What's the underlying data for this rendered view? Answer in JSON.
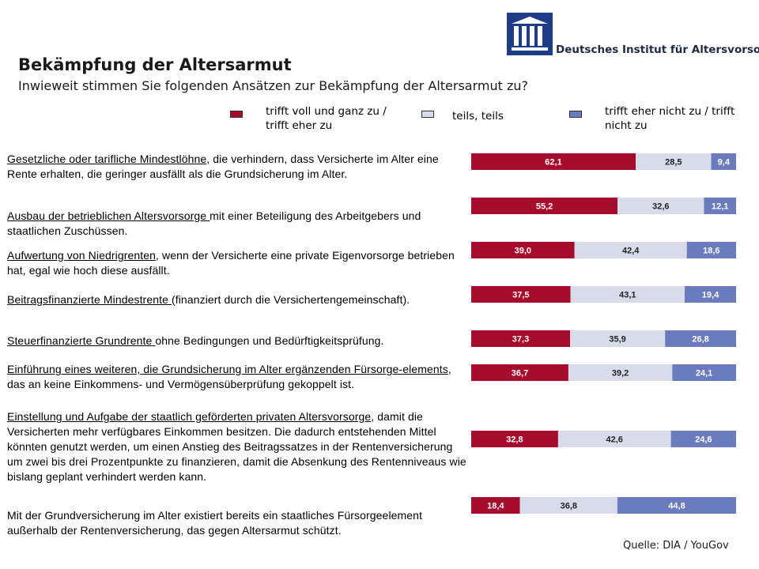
{
  "logo": {
    "name": "Deutsches Institut für Altersvorsorge"
  },
  "title": "Bekämpfung der Altersarmut",
  "subtitle": "Inwieweit stimmen Sie folgenden Ansätzen zur Bekämpfung der Altersarmut zu?",
  "legend": {
    "agree_line1": "trifft voll und ganz zu /",
    "agree_line2": "trifft eher zu",
    "neutral": "teils, teils",
    "disagree_line1": "trifft eher nicht zu / trifft",
    "disagree_line2": "nicht zu"
  },
  "questions": [
    {
      "underlined": "Gesetzliche oder tarifliche Mindestlöhne",
      "rest": ", die verhindern, dass Versicherte im Alter eine Rente erhalten, die geringer ausfällt als die Grundsicherung im Alter."
    },
    {
      "underlined": "Ausbau der betrieblichen Altersvorsorge ",
      "rest": "mit einer Beteiligung des Arbeitgebers und staatlichen Zuschüssen."
    },
    {
      "underlined": "Aufwertung von Niedrigrenten",
      "rest": ", wenn der Versicherte eine private Eigenvorsorge betrieben hat, egal wie hoch diese ausfällt."
    },
    {
      "underlined": "Beitragsfinanzierte Mindestrente ",
      "rest": "(finanziert durch die Versichertengemeinschaft)."
    },
    {
      "underlined": "Steuerfinanzierte Grundrente ",
      "rest": "ohne Bedingungen und Bedürftigkeitsprüfung."
    },
    {
      "underlined": "Einführung eines weiteren, die Grundsicherung im Alter ergänzenden Fürsorge-elements",
      "rest": ", das an keine Einkommens- und Vermögensüberprüfung gekoppelt ist."
    },
    {
      "underlined": "Einstellung und Aufgabe der staatlich geförderten privaten Altersvorsorge",
      "rest": ", damit die Versicherten mehr verfügbares Einkommen besitzen. Die dadurch entstehenden Mittel könnten genutzt werden, um einen Anstieg des Beitragssatzes in der Rentenversicherung um zwei bis drei Prozentpunkte zu finanzieren, damit die Absenkung des Rentenniveaus wie bislang geplant verhindert werden kann."
    },
    {
      "underlined": "",
      "rest": "Mit der Grundversicherung im Alter existiert bereits ein staatliches Fürsorgeelement außerhalb der Rentenversicherung, das gegen Altersarmut schützt."
    }
  ],
  "source": "Quelle: DIA / YouGov",
  "colors": {
    "agree": "#a50b2c",
    "neutral": "#d8dcea",
    "disagree": "#6b7cbe",
    "logo": "#1f3c88"
  },
  "chart_data": {
    "type": "bar",
    "orientation": "horizontal",
    "stacked": true,
    "categories": [
      "Gesetzliche oder tarifliche Mindestlöhne",
      "Ausbau der betrieblichen Altersvorsorge",
      "Aufwertung von Niedrigrenten",
      "Beitragsfinanzierte Mindestrente",
      "Steuerfinanzierte Grundrente",
      "Einführung eines weiteren, die Grundsicherung im Alter ergänzenden Fürsorge-elements",
      "Einstellung und Aufgabe der staatlich geförderten privaten Altersvorsorge",
      "Mit der Grundversicherung im Alter existiert bereits ein staatliches Fürsorgeelement"
    ],
    "series": [
      {
        "name": "trifft voll und ganz zu / trifft eher zu",
        "values": [
          62.1,
          55.2,
          39.0,
          37.5,
          37.3,
          36.7,
          32.8,
          18.4
        ],
        "labels": [
          "62,1",
          "55,2",
          "39,0",
          "37,5",
          "37,3",
          "36,7",
          "32,8",
          "18,4"
        ]
      },
      {
        "name": "teils, teils",
        "values": [
          28.5,
          32.6,
          42.4,
          43.1,
          35.9,
          39.2,
          42.6,
          36.8
        ],
        "labels": [
          "28,5",
          "32,6",
          "42,4",
          "43,1",
          "35,9",
          "39,2",
          "42,6",
          "36,8"
        ]
      },
      {
        "name": "trifft eher nicht zu / trifft nicht zu",
        "values": [
          9.4,
          12.1,
          18.6,
          19.4,
          26.8,
          24.1,
          24.6,
          44.8
        ],
        "labels": [
          "9,4",
          "12,1",
          "18,6",
          "19,4",
          "26,8",
          "24,1",
          "24,6",
          "44,8"
        ]
      }
    ],
    "xlim": [
      0,
      100
    ],
    "grid": false,
    "legend": "top"
  }
}
